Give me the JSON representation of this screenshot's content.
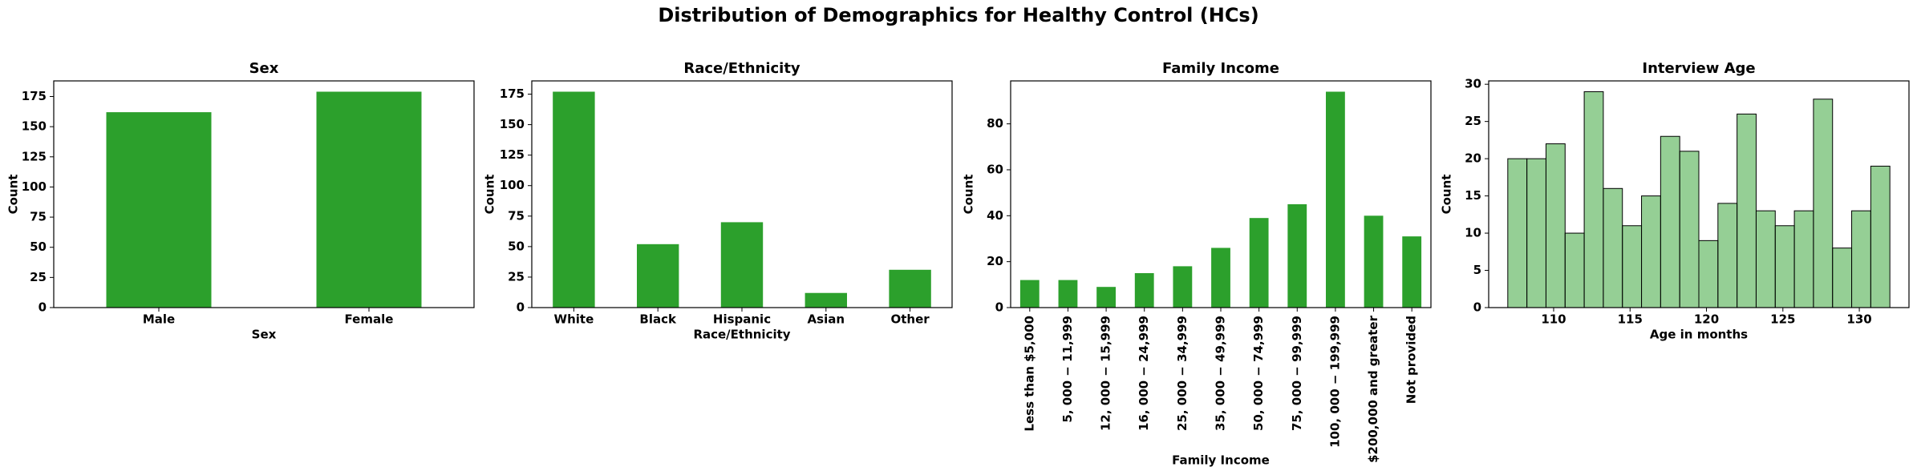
{
  "title": "Distribution of Demographics for Healthy Control (HCs)",
  "chart_data": [
    {
      "type": "bar",
      "title": "Sex",
      "xlabel": "Sex",
      "ylabel": "Count",
      "color": "#2ca02c",
      "categories": [
        "Male",
        "Female"
      ],
      "values": [
        162,
        179
      ],
      "ylim": [
        0,
        187.95
      ],
      "yticks": [
        0,
        25,
        50,
        75,
        100,
        125,
        150,
        175
      ]
    },
    {
      "type": "bar",
      "title": "Race/Ethnicity",
      "xlabel": "Race/Ethnicity",
      "ylabel": "Count",
      "color": "#2ca02c",
      "categories": [
        "White",
        "Black",
        "Hispanic",
        "Asian",
        "Other"
      ],
      "values": [
        177,
        52,
        70,
        12,
        31
      ],
      "ylim": [
        0,
        185.85
      ],
      "yticks": [
        0,
        25,
        50,
        75,
        100,
        125,
        150,
        175
      ]
    },
    {
      "type": "bar",
      "title": "Family Income",
      "xlabel": "Family Income",
      "ylabel": "Count",
      "color": "#2ca02c",
      "rotate_labels": true,
      "categories": [
        "Less than $5,000",
        "5, 000 − 11,999",
        "12, 000 − 15,999",
        "16, 000 − 24,999",
        "25, 000 − 34,999",
        "35, 000 − 49,999",
        "50, 000 − 74,999",
        "75, 000 − 99,999",
        "100, 000 − 199,999",
        "$200,000 and greater",
        "Not provided"
      ],
      "values": [
        12,
        12,
        9,
        15,
        18,
        26,
        39,
        45,
        94,
        40,
        31
      ],
      "ylim": [
        0,
        98.7
      ],
      "yticks": [
        0,
        20,
        40,
        60,
        80
      ]
    },
    {
      "type": "histogram",
      "title": "Interview Age",
      "xlabel": "Age in months",
      "ylabel": "Count",
      "color": "#2ca02c",
      "alpha": 0.5,
      "edgecolor": "#000000",
      "bins": [
        107,
        108.25,
        109.5,
        110.75,
        112,
        113.25,
        114.5,
        115.75,
        117,
        118.25,
        119.5,
        120.75,
        122,
        123.25,
        124.5,
        125.75,
        127,
        128.25,
        129.5,
        130.75,
        132
      ],
      "values": [
        20,
        20,
        22,
        10,
        29,
        16,
        11,
        15,
        23,
        21,
        9,
        14,
        26,
        13,
        11,
        13,
        28,
        8,
        13,
        19
      ],
      "xlim": [
        105.75,
        133.25
      ],
      "xticks": [
        110,
        115,
        120,
        125,
        130
      ],
      "ylim": [
        0,
        30.45
      ],
      "yticks": [
        0,
        5,
        10,
        15,
        20,
        25,
        30
      ]
    }
  ]
}
